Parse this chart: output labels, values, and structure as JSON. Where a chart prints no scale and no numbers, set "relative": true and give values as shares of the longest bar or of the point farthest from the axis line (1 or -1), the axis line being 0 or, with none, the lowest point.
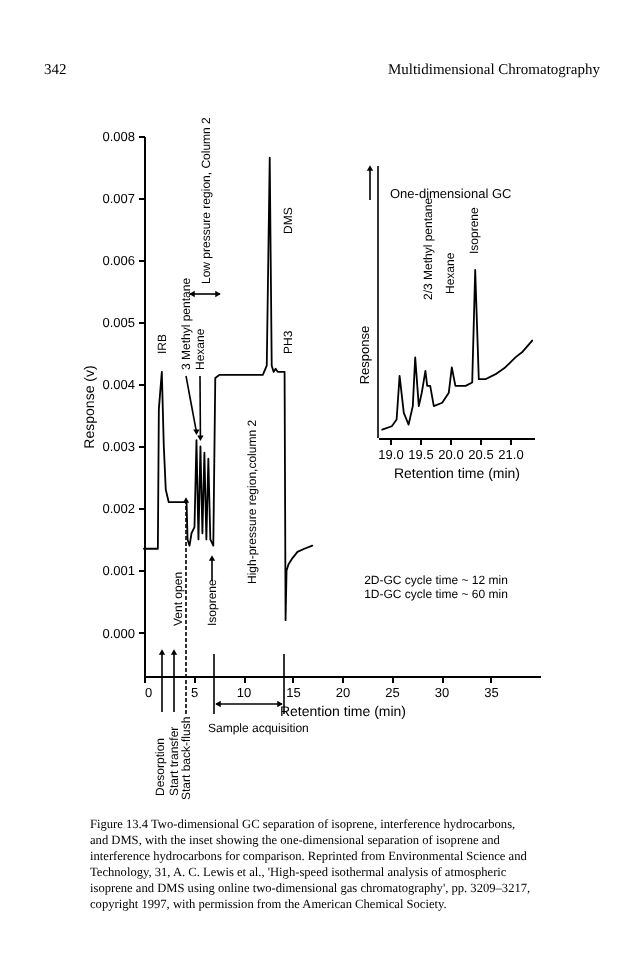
{
  "chart_data": [
    {
      "type": "line",
      "xlabel": "Retention time (min)",
      "ylabel": "Response (v)",
      "color": "#000000",
      "x": [
        0,
        1.4,
        1.5,
        1.8,
        2.0,
        2.2,
        2.5,
        4.3,
        4.4,
        4.6,
        4.8,
        5.1,
        5.3,
        5.5,
        5.7,
        5.9,
        6.1,
        6.3,
        6.5,
        6.7,
        7.0,
        7.2,
        7.6,
        12.0,
        12.4,
        12.7,
        12.9,
        13.1,
        13.3,
        13.5,
        14.2,
        14.3,
        14.4,
        14.6,
        15.0,
        15.5,
        16.2,
        17.0
      ],
      "values": [
        0.00135,
        0.00135,
        0.0036,
        0.0042,
        0.003,
        0.0023,
        0.0021,
        0.0021,
        0.0015,
        0.0014,
        0.0016,
        0.0017,
        0.0031,
        0.0015,
        0.003,
        0.0016,
        0.0029,
        0.0015,
        0.0028,
        0.0015,
        0.0014,
        0.0041,
        0.00415,
        0.00415,
        0.0043,
        0.00765,
        0.0043,
        0.0042,
        0.00425,
        0.0042,
        0.0042,
        0.0002,
        0.001,
        0.0011,
        0.0012,
        0.0013,
        0.00135,
        0.0014
      ],
      "xlim": [
        0,
        40
      ],
      "ylim": [
        -0.0007,
        0.008
      ],
      "xticks": [
        0,
        5,
        10,
        15,
        20,
        25,
        30,
        35
      ],
      "yticks": [
        {
          "value": 0,
          "label": "0.000"
        },
        {
          "value": 0.001,
          "label": "0.001"
        },
        {
          "value": 0.002,
          "label": "0.002"
        },
        {
          "value": 0.003,
          "label": "0.003"
        },
        {
          "value": 0.004,
          "label": "0.004"
        },
        {
          "value": 0.005,
          "label": "0.005"
        },
        {
          "value": 0.006,
          "label": "0.006"
        },
        {
          "value": 0.007,
          "label": "0.007"
        },
        {
          "value": 0.008,
          "label": "0.008"
        }
      ],
      "grid": false,
      "annotations": [
        "342",
        "Multidimensional Chromatography",
        "Low pressure region, Column 2",
        "DMS",
        "PH3",
        "IRB",
        {
          "text": "3 Methyl pentane",
          "x": 5.3,
          "y": 0.0031
        },
        {
          "text": "Hexane",
          "x": 5.7,
          "y": 0.003
        },
        "Isoprene",
        "High-pressure region,column 2",
        "Vent open",
        "Desorption",
        "Start transfer",
        "Start back-flush",
        "Sample acquisition",
        "2D-GC cycle time ~ 12 min",
        "1D-GC cycle time ~ 60 min",
        "Figure 13.4 Two-dimensional GC separation of isoprene, interference hydrocarbons, and DMS, with the inset showing the one-dimensional separation of isoprene and interference hydrocarbons for comparison. Reprinted from Environmental Science and Technology, 31, A. C. Lewis et al., 'High-speed isothermal analysis of atmospheric isoprene and DMS using online two-dimensional gas chromatography', pp. 3209–3217, copyright 1997, with permission from the American Chemical Society."
      ]
    },
    {
      "type": "line",
      "title": "One-dimensional GC",
      "xlabel": "Retention time (min)",
      "ylabel": "Response",
      "color": "#000000",
      "relative": true,
      "tick_labels": "x",
      "x": [
        18.87,
        19.03,
        19.11,
        19.16,
        19.23,
        19.31,
        19.38,
        19.42,
        19.48,
        19.53,
        19.59,
        19.62,
        19.67,
        19.73,
        19.87,
        19.98,
        20.03,
        20.09,
        20.26,
        20.37,
        20.42,
        20.48,
        20.59,
        20.76,
        20.92,
        21.09,
        21.2,
        21.37
      ],
      "values": [
        0.05,
        0.07,
        0.11,
        0.37,
        0.15,
        0.08,
        0.19,
        0.48,
        0.19,
        0.27,
        0.4,
        0.31,
        0.31,
        0.19,
        0.21,
        0.27,
        0.42,
        0.31,
        0.31,
        0.33,
        1,
        0.35,
        0.35,
        0.38,
        0.42,
        0.48,
        0.51,
        0.58
      ],
      "xlim": [
        18.8,
        21.4
      ],
      "xticks": [
        {
          "value": 19,
          "label": "19.0"
        },
        19.5,
        {
          "value": 20,
          "label": "20.0"
        },
        20.5,
        {
          "value": 21,
          "label": "21.0"
        }
      ],
      "grid": false,
      "annotations": [
        "2/3 Methyl pentane",
        "Hexane",
        "Isoprene"
      ]
    }
  ]
}
